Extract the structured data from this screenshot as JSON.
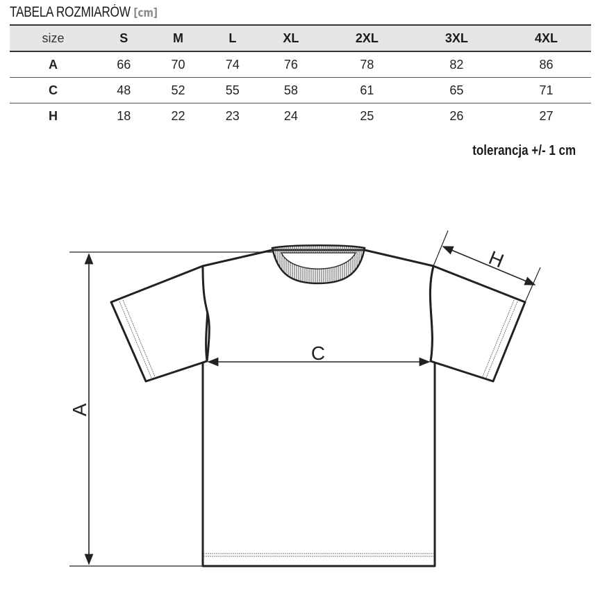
{
  "title": "TABELA ROZMIARÓW",
  "unit": "[cm]",
  "table": {
    "headers": [
      "size",
      "S",
      "M",
      "L",
      "XL",
      "2XL",
      "3XL",
      "4XL"
    ],
    "rows": [
      [
        "A",
        "66",
        "70",
        "74",
        "76",
        "78",
        "82",
        "86"
      ],
      [
        "C",
        "48",
        "52",
        "55",
        "58",
        "61",
        "65",
        "71"
      ],
      [
        "H",
        "18",
        "22",
        "23",
        "24",
        "25",
        "26",
        "27"
      ]
    ]
  },
  "tolerance": "tolerancja +/- 1 cm",
  "diagram": {
    "label_a": "A",
    "label_c": "C",
    "label_h": "H"
  }
}
